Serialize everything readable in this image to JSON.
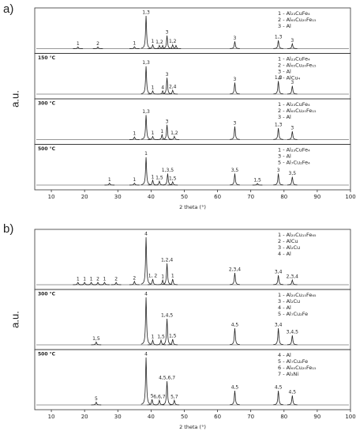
{
  "chart_data": [
    {
      "type": "xrd",
      "panel": "a)",
      "ylabel": "a.u.",
      "xlabel": "2 theta (°)",
      "xlim": [
        5,
        100
      ],
      "xticks": [
        10,
        20,
        30,
        40,
        50,
        60,
        70,
        80,
        90,
        100
      ],
      "patterns": [
        {
          "legend": [
            "1 - Al₂₃CuFe₄",
            "2 - Al₆₅Cu₂₀Fe₁₅",
            "3 - Al"
          ],
          "x": [
            18,
            24,
            35,
            38.5,
            40.5,
            42.5,
            43.5,
            44.8,
            46.5,
            47.5,
            65.2,
            78.3,
            82.5
          ],
          "heights": [
            0.05,
            0.05,
            0.06,
            1.0,
            0.12,
            0.1,
            0.1,
            0.4,
            0.12,
            0.1,
            0.22,
            0.25,
            0.15
          ],
          "labels": [
            "1",
            "2",
            "1",
            "1,3",
            "1",
            "1,2",
            null,
            "3",
            "1,2",
            null,
            "3",
            "1,3",
            "3"
          ]
        },
        {
          "temp": "150 °C",
          "legend": [
            "1 - Al₂₃CuFe₄",
            "2 - Al₆₅Cu₂₀Fe₁₅",
            "3 - Al",
            "4 - AlCu₄"
          ],
          "x": [
            38.5,
            40.5,
            43.5,
            44.8,
            46.5,
            65.2,
            78.3,
            82.5
          ],
          "heights": [
            0.85,
            0.1,
            0.1,
            0.5,
            0.12,
            0.35,
            0.4,
            0.25
          ],
          "labels": [
            "1,3",
            "1",
            "4",
            "3",
            "2,4",
            "3",
            "1,3",
            "3"
          ]
        },
        {
          "temp": "300 °C",
          "legend": [
            "1 - Al₂₃CuFe₄",
            "2 - Al₆₅Cu₂₀Fe₁₅",
            "3 - Al"
          ],
          "x": [
            35,
            38.5,
            40.5,
            43.3,
            44.8,
            47,
            65.2,
            78.3,
            82.5
          ],
          "heights": [
            0.08,
            0.75,
            0.1,
            0.15,
            0.45,
            0.1,
            0.4,
            0.35,
            0.25
          ],
          "labels": [
            "1",
            "1,3",
            "1",
            "1",
            "3",
            "1,2",
            "3",
            "1,3",
            "3"
          ]
        },
        {
          "temp": "500 °C",
          "legend": [
            "1 - Al₂₃CuFe₄",
            "3 - Al",
            "5 - Al₇Cu₂Fe₄"
          ],
          "x": [
            27.5,
            35,
            38.5,
            40.5,
            42.5,
            45,
            46.5,
            65.2,
            72,
            78.3,
            82.5
          ],
          "heights": [
            0.06,
            0.06,
            0.85,
            0.15,
            0.12,
            0.35,
            0.1,
            0.35,
            0.05,
            0.35,
            0.25
          ],
          "labels": [
            "1",
            "1",
            "1",
            "1",
            "1,5",
            "1,3,5",
            "1,5",
            "3,5",
            "1,5",
            "3",
            "3,5"
          ]
        }
      ]
    },
    {
      "type": "xrd",
      "panel": "b)",
      "ylabel": "a.u.",
      "xlabel": "2 theta (°)",
      "xlim": [
        5,
        100
      ],
      "xticks": [
        10,
        20,
        30,
        40,
        50,
        60,
        70,
        80,
        90,
        100
      ],
      "patterns": [
        {
          "legend": [
            "1 - Al₂₀Cu₁₅Fe₆₅",
            "2 - AlCu",
            "3 - Al₂Cu",
            "4 - Al"
          ],
          "x": [
            18,
            20,
            22,
            24,
            26,
            29.5,
            35,
            38.5,
            40.5,
            43.5,
            44.8,
            46.5,
            65.2,
            78.3,
            82.5
          ],
          "heights": [
            0.05,
            0.05,
            0.05,
            0.05,
            0.05,
            0.05,
            0.07,
            1.0,
            0.12,
            0.1,
            0.45,
            0.12,
            0.25,
            0.2,
            0.1
          ],
          "labels": [
            "1",
            "1",
            "1",
            "2",
            "1",
            "2",
            "2",
            "4",
            "1, 2",
            "1",
            "1,2,4",
            "1",
            "2,3,4",
            "3,4",
            "2,3,4"
          ]
        },
        {
          "temp": "300 °C",
          "legend": [
            "1 - Al₂₀Cu₁₅Fe₆₅",
            "3 - Al₂Cu",
            "4 - Al",
            "5 - Al₇Cu₂Fe"
          ],
          "x": [
            23.5,
            38.5,
            40.5,
            43,
            44.8,
            46.5,
            65.2,
            78.3,
            82.5
          ],
          "heights": [
            0.06,
            1.0,
            0.1,
            0.1,
            0.55,
            0.12,
            0.35,
            0.35,
            0.2
          ],
          "labels": [
            "1,5",
            "4",
            "1",
            "1,5",
            "1,4,5",
            "1,5",
            "4,5",
            "3,4",
            "3,4,5"
          ]
        },
        {
          "temp": "500 °C",
          "legend": [
            "4 - Al",
            "5 - Al₇Cu₂Fe",
            "6 - Al₆₅Cu₂₀Fe₁₅",
            "7 - Al₃Ni"
          ],
          "x": [
            23.5,
            38.5,
            40.3,
            42.5,
            44.8,
            47,
            65.2,
            78.3,
            82.5
          ],
          "heights": [
            0.06,
            1.0,
            0.12,
            0.1,
            0.5,
            0.1,
            0.3,
            0.3,
            0.2
          ],
          "labels": [
            "5",
            "4",
            "5",
            "6,6,7",
            "4,5,6,7",
            "5,7",
            "4,5",
            "4,5",
            "4,5"
          ]
        }
      ]
    }
  ]
}
